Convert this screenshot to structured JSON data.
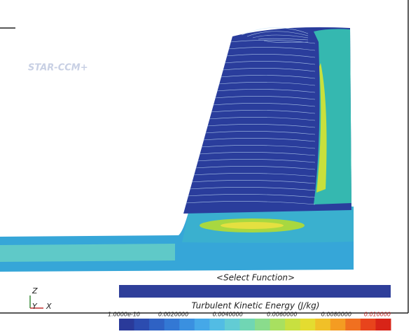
{
  "watermark": "STAR-CCM+",
  "function_selector": "<Select Function>",
  "colorbar": {
    "title": "Turbulent Kinetic Energy (J/kg)",
    "tick_labels": [
      "1.0000e-10",
      "0.0020000",
      "0.0040000",
      "0.0060000",
      "0.0080000",
      "0.010000"
    ]
  },
  "axes_triad": {
    "z": "Z",
    "y": "Y",
    "x": "X"
  }
}
